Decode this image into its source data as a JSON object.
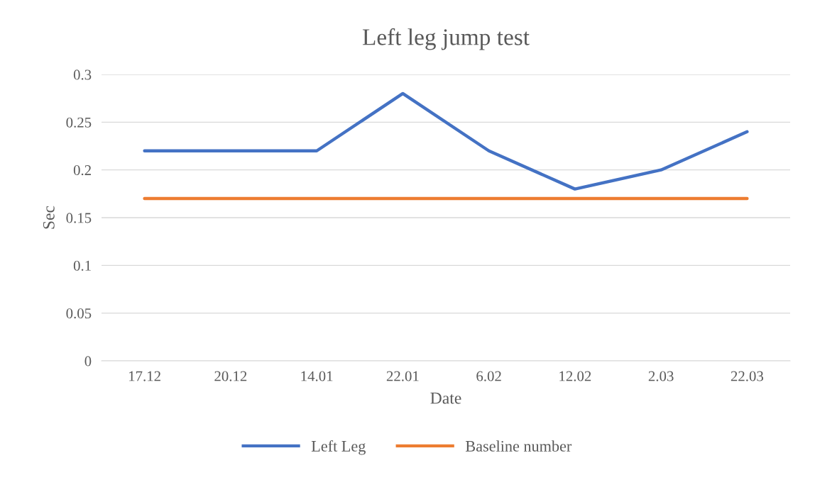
{
  "chart_data": {
    "type": "line",
    "title": "Left leg jump test",
    "xlabel": "Date",
    "ylabel": "Sec",
    "categories": [
      "17.12",
      "20.12",
      "14.01",
      "22.01",
      "6.02",
      "12.02",
      "2.03",
      "22.03"
    ],
    "series": [
      {
        "name": "Left Leg",
        "color": "#4472c4",
        "values": [
          0.22,
          0.22,
          0.22,
          0.28,
          0.22,
          0.18,
          0.2,
          0.24
        ]
      },
      {
        "name": "Baseline number",
        "color": "#ed7d31",
        "values": [
          0.17,
          0.17,
          0.17,
          0.17,
          0.17,
          0.17,
          0.17,
          0.17
        ]
      }
    ],
    "ylim": [
      0,
      0.3
    ],
    "yticks": [
      0,
      0.05,
      0.1,
      0.15,
      0.2,
      0.25,
      0.3
    ],
    "grid": "y",
    "legend": "bottom",
    "marker": "none",
    "line_style": "solid"
  }
}
